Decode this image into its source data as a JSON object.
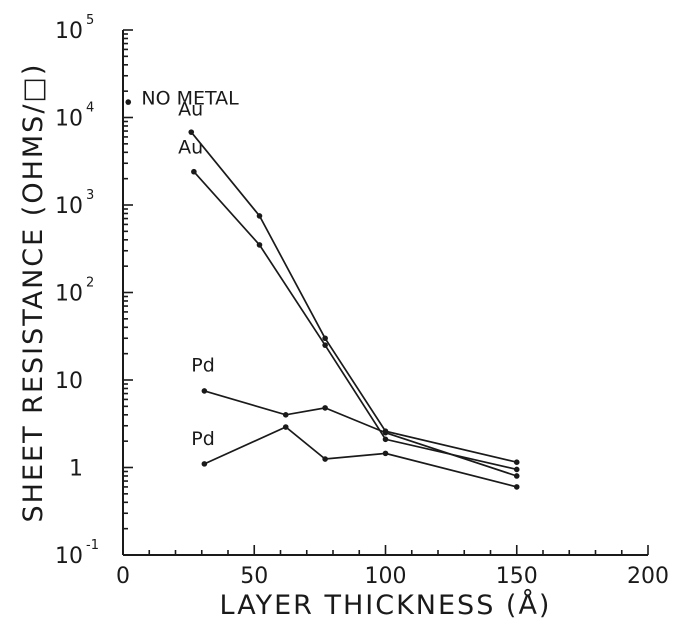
{
  "chart_data": {
    "type": "line",
    "xlabel": "LAYER THICKNESS (Å)",
    "ylabel": "SHEET RESISTANCE (OHMS/□)",
    "xlim": [
      0,
      200
    ],
    "ylim": [
      0.1,
      100000
    ],
    "yscale": "log",
    "grid": false,
    "x_ticks": [
      {
        "value": 0,
        "label": "0"
      },
      {
        "value": 50,
        "label": "50"
      },
      {
        "value": 100,
        "label": "100"
      },
      {
        "value": 150,
        "label": "150"
      },
      {
        "value": 200,
        "label": "200"
      }
    ],
    "y_ticks": [
      {
        "value": 0.1,
        "base": "10",
        "exp": "-1"
      },
      {
        "value": 1,
        "base": "1",
        "exp": ""
      },
      {
        "value": 10,
        "base": "10",
        "exp": ""
      },
      {
        "value": 100,
        "base": "10",
        "exp": "2"
      },
      {
        "value": 1000,
        "base": "10",
        "exp": "3"
      },
      {
        "value": 10000,
        "base": "10",
        "exp": "4"
      },
      {
        "value": 100000,
        "base": "10",
        "exp": "5"
      }
    ],
    "series": [
      {
        "name": "Au",
        "x": [
          26,
          52,
          77,
          100,
          150
        ],
        "y": [
          6800,
          750,
          30,
          2.6,
          1.15
        ]
      },
      {
        "name": "Au",
        "x": [
          27,
          52,
          77,
          100,
          150
        ],
        "y": [
          2400,
          350,
          25,
          2.1,
          0.95
        ]
      },
      {
        "name": "Pd",
        "x": [
          31,
          62,
          77,
          100,
          150
        ],
        "y": [
          7.5,
          4,
          4.8,
          2.5,
          0.8
        ]
      },
      {
        "name": "Pd",
        "x": [
          31,
          62,
          77,
          100,
          150
        ],
        "y": [
          1.1,
          2.9,
          1.25,
          1.45,
          0.6
        ]
      }
    ],
    "points": [
      {
        "name": "NO METAL",
        "x": 2,
        "y": 15000
      }
    ],
    "annotations": [
      {
        "text": "NO METAL",
        "x": 7,
        "y": 14000
      },
      {
        "text": "Au",
        "x": 21,
        "y": 10500
      },
      {
        "text": "Au",
        "x": 21,
        "y": 3900
      },
      {
        "text": "Pd",
        "x": 26,
        "y": 12.5
      },
      {
        "text": "Pd",
        "x": 26,
        "y": 1.8
      }
    ]
  }
}
